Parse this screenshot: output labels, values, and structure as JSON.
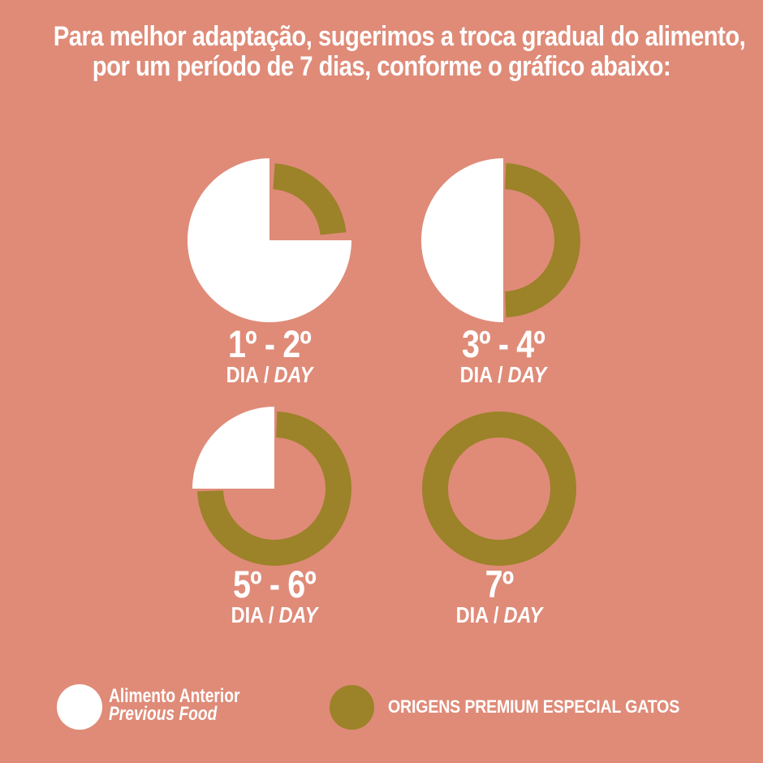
{
  "colors": {
    "background": "#DF8B78",
    "text": "#FFFFFF",
    "previous_food": "#FFFFFF",
    "new_food": "#9C8228"
  },
  "title": {
    "line1": "Para melhor adaptação, sugerimos a troca gradual do alimento,",
    "line2": "por um período de 7 dias, conforme o gráfico abaixo:"
  },
  "charts": [
    {
      "id": "day-1-2",
      "range_label": "1º - 2º",
      "dia_label": "DIA",
      "separator": "/",
      "day_label": "DAY",
      "previous_food_pct": 75,
      "new_food_pct": 25,
      "white_arc": {
        "start": 90,
        "end": 360
      },
      "gold_arc": {
        "start": 4,
        "end": 84
      }
    },
    {
      "id": "day-3-4",
      "range_label": "3º - 4º",
      "dia_label": "DIA",
      "separator": "/",
      "day_label": "DAY",
      "previous_food_pct": 50,
      "new_food_pct": 50,
      "white_arc": {
        "start": 180,
        "end": 360
      },
      "gold_arc": {
        "start": 2,
        "end": 178
      }
    },
    {
      "id": "day-5-6",
      "range_label": "5º - 6º",
      "dia_label": "DIA",
      "separator": "/",
      "day_label": "DAY",
      "previous_food_pct": 25,
      "new_food_pct": 75,
      "white_arc": {
        "start": 270,
        "end": 360
      },
      "gold_arc": {
        "start": 2,
        "end": 268
      }
    },
    {
      "id": "day-7",
      "range_label": "7º",
      "dia_label": "DIA",
      "separator": "/",
      "day_label": "DAY",
      "previous_food_pct": 0,
      "new_food_pct": 100,
      "white_arc": null,
      "gold_arc": {
        "start": 0,
        "end": 360
      }
    }
  ],
  "legend": {
    "previous": {
      "line1": "Alimento Anterior",
      "line2": "Previous Food",
      "color": "#FFFFFF"
    },
    "new": {
      "label": "ORIGENS PREMIUM ESPECIAL GATOS",
      "color": "#9C8228"
    }
  },
  "chart_data": {
    "type": "pie",
    "title": "Para melhor adaptação, sugerimos a troca gradual do alimento, por um período de 7 dias, conforme o gráfico abaixo:",
    "legend_position": "bottom",
    "legend": [
      "Alimento Anterior / Previous Food",
      "ORIGENS PREMIUM ESPECIAL GATOS"
    ],
    "series": [
      {
        "name": "1º - 2º DIA / DAY",
        "slices": [
          {
            "label": "Alimento Anterior / Previous Food",
            "value": 75
          },
          {
            "label": "ORIGENS PREMIUM ESPECIAL GATOS",
            "value": 25
          }
        ]
      },
      {
        "name": "3º - 4º DIA / DAY",
        "slices": [
          {
            "label": "Alimento Anterior / Previous Food",
            "value": 50
          },
          {
            "label": "ORIGENS PREMIUM ESPECIAL GATOS",
            "value": 50
          }
        ]
      },
      {
        "name": "5º - 6º DIA / DAY",
        "slices": [
          {
            "label": "Alimento Anterior / Previous Food",
            "value": 25
          },
          {
            "label": "ORIGENS PREMIUM ESPECIAL GATOS",
            "value": 75
          }
        ]
      },
      {
        "name": "7º DIA / DAY",
        "slices": [
          {
            "label": "Alimento Anterior / Previous Food",
            "value": 0
          },
          {
            "label": "ORIGENS PREMIUM ESPECIAL GATOS",
            "value": 100
          }
        ]
      }
    ]
  }
}
